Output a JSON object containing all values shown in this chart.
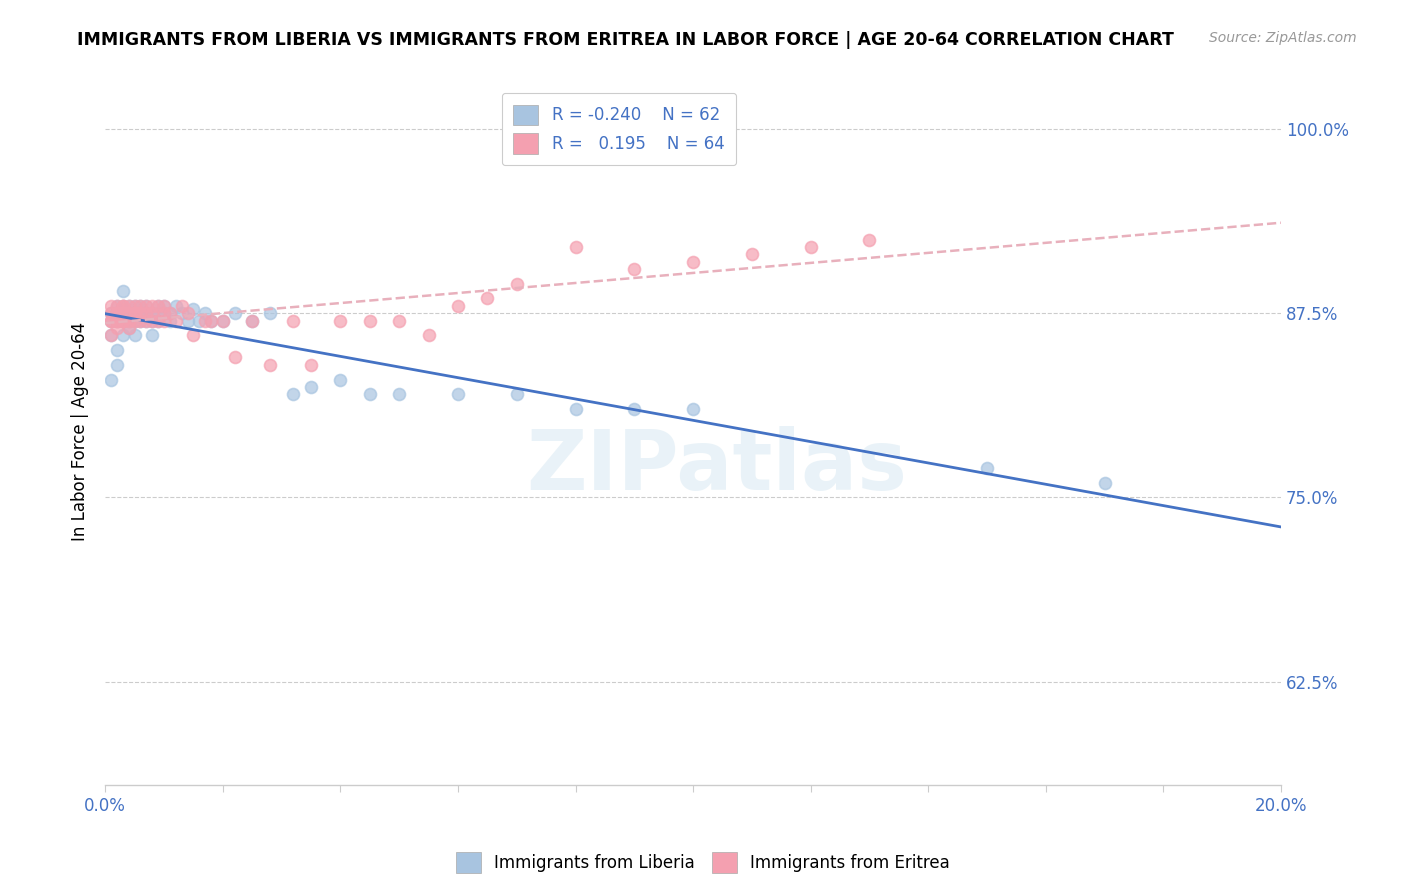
{
  "title": "IMMIGRANTS FROM LIBERIA VS IMMIGRANTS FROM ERITREA IN LABOR FORCE | AGE 20-64 CORRELATION CHART",
  "source": "Source: ZipAtlas.com",
  "ylabel": "In Labor Force | Age 20-64",
  "yticks": [
    0.625,
    0.75,
    0.875,
    1.0
  ],
  "ytick_labels": [
    "62.5%",
    "75.0%",
    "87.5%",
    "100.0%"
  ],
  "xmin": 0.0,
  "xmax": 0.2,
  "ymin": 0.555,
  "ymax": 1.035,
  "liberia_color": "#a8c4e0",
  "eritrea_color": "#f4a0b0",
  "liberia_line_color": "#4472c4",
  "eritrea_line_color": "#e8b0bc",
  "liberia_R": -0.24,
  "liberia_N": 62,
  "eritrea_R": 0.195,
  "eritrea_N": 64,
  "watermark": "ZIPatlas",
  "liberia_x": [
    0.001,
    0.001,
    0.001,
    0.001,
    0.002,
    0.002,
    0.002,
    0.002,
    0.002,
    0.003,
    0.003,
    0.003,
    0.003,
    0.003,
    0.003,
    0.004,
    0.004,
    0.004,
    0.004,
    0.005,
    0.005,
    0.005,
    0.005,
    0.006,
    0.006,
    0.006,
    0.007,
    0.007,
    0.007,
    0.008,
    0.008,
    0.008,
    0.009,
    0.009,
    0.009,
    0.01,
    0.01,
    0.011,
    0.011,
    0.012,
    0.013,
    0.014,
    0.015,
    0.016,
    0.017,
    0.018,
    0.02,
    0.022,
    0.025,
    0.028,
    0.032,
    0.035,
    0.04,
    0.045,
    0.05,
    0.06,
    0.07,
    0.08,
    0.09,
    0.1,
    0.15,
    0.17
  ],
  "liberia_y": [
    0.875,
    0.86,
    0.87,
    0.83,
    0.87,
    0.875,
    0.88,
    0.85,
    0.84,
    0.87,
    0.875,
    0.86,
    0.88,
    0.89,
    0.87,
    0.875,
    0.87,
    0.865,
    0.88,
    0.875,
    0.87,
    0.86,
    0.88,
    0.875,
    0.87,
    0.88,
    0.875,
    0.87,
    0.88,
    0.87,
    0.86,
    0.875,
    0.88,
    0.875,
    0.87,
    0.875,
    0.88,
    0.875,
    0.87,
    0.88,
    0.875,
    0.87,
    0.878,
    0.87,
    0.875,
    0.87,
    0.87,
    0.875,
    0.87,
    0.875,
    0.82,
    0.825,
    0.83,
    0.82,
    0.82,
    0.82,
    0.82,
    0.81,
    0.81,
    0.81,
    0.77,
    0.76
  ],
  "eritrea_x": [
    0.001,
    0.001,
    0.001,
    0.001,
    0.001,
    0.002,
    0.002,
    0.002,
    0.002,
    0.002,
    0.002,
    0.003,
    0.003,
    0.003,
    0.003,
    0.003,
    0.004,
    0.004,
    0.004,
    0.004,
    0.005,
    0.005,
    0.005,
    0.005,
    0.006,
    0.006,
    0.006,
    0.007,
    0.007,
    0.007,
    0.008,
    0.008,
    0.008,
    0.009,
    0.009,
    0.01,
    0.01,
    0.01,
    0.011,
    0.012,
    0.013,
    0.014,
    0.015,
    0.017,
    0.018,
    0.02,
    0.022,
    0.025,
    0.028,
    0.032,
    0.035,
    0.04,
    0.045,
    0.05,
    0.055,
    0.06,
    0.065,
    0.07,
    0.08,
    0.09,
    0.1,
    0.11,
    0.12,
    0.13
  ],
  "eritrea_y": [
    0.875,
    0.87,
    0.86,
    0.88,
    0.87,
    0.875,
    0.88,
    0.87,
    0.865,
    0.875,
    0.87,
    0.875,
    0.87,
    0.88,
    0.87,
    0.88,
    0.875,
    0.87,
    0.865,
    0.88,
    0.875,
    0.87,
    0.88,
    0.875,
    0.88,
    0.87,
    0.875,
    0.87,
    0.88,
    0.875,
    0.87,
    0.88,
    0.875,
    0.87,
    0.88,
    0.875,
    0.87,
    0.88,
    0.875,
    0.87,
    0.88,
    0.875,
    0.86,
    0.87,
    0.87,
    0.87,
    0.845,
    0.87,
    0.84,
    0.87,
    0.84,
    0.87,
    0.87,
    0.87,
    0.86,
    0.88,
    0.885,
    0.895,
    0.92,
    0.905,
    0.91,
    0.915,
    0.92,
    0.925
  ]
}
